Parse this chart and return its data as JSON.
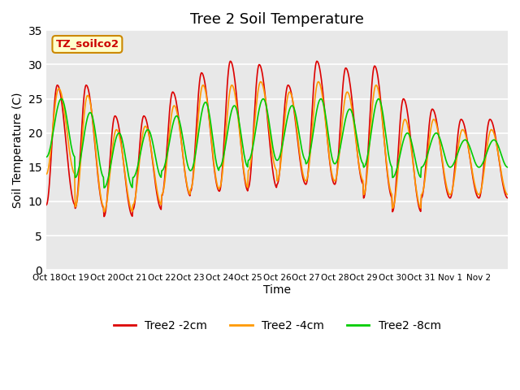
{
  "title": "Tree 2 Soil Temperature",
  "ylabel": "Soil Temperature (C)",
  "xlabel": "Time",
  "ylim": [
    0,
    35
  ],
  "yticks": [
    0,
    5,
    10,
    15,
    20,
    25,
    30,
    35
  ],
  "xtick_labels": [
    "Oct 18",
    "Oct 19",
    "Oct 20",
    "Oct 21",
    "Oct 22",
    "Oct 23",
    "Oct 24",
    "Oct 25",
    "Oct 26",
    "Oct 27",
    "Oct 28",
    "Oct 29",
    "Oct 30",
    "Oct 31",
    "Nov 1",
    "Nov 2"
  ],
  "line_colors": [
    "#dd0000",
    "#ff9900",
    "#00cc00"
  ],
  "line_labels": [
    "Tree2 -2cm",
    "Tree2 -4cm",
    "Tree2 -8cm"
  ],
  "label_box_text": "TZ_soilco2",
  "label_box_bg": "#ffffcc",
  "label_box_edge": "#cc8800",
  "title_fontsize": 13,
  "axis_fontsize": 10,
  "legend_fontsize": 10,
  "daily_min_2cm": [
    9.5,
    9.0,
    7.8,
    8.8,
    10.8,
    11.5,
    11.5,
    12.0,
    12.5,
    12.5,
    12.5,
    10.5,
    8.5,
    10.5,
    10.5,
    10.5
  ],
  "daily_max_2cm": [
    27.0,
    27.0,
    22.5,
    22.5,
    26.0,
    28.8,
    30.5,
    30.0,
    27.0,
    30.5,
    29.5,
    29.8,
    25.0,
    23.5,
    22.0,
    22.0
  ],
  "daily_min_4cm": [
    14.0,
    9.2,
    8.5,
    9.5,
    11.0,
    11.8,
    12.0,
    14.5,
    13.0,
    13.0,
    13.0,
    11.0,
    9.0,
    11.0,
    11.0,
    11.0
  ],
  "daily_max_4cm": [
    26.5,
    25.5,
    20.5,
    21.0,
    24.0,
    27.0,
    27.0,
    27.5,
    26.0,
    27.5,
    26.0,
    27.0,
    22.0,
    22.0,
    20.5,
    20.5
  ],
  "daily_min_8cm": [
    16.5,
    13.5,
    12.0,
    13.5,
    14.5,
    14.5,
    15.0,
    16.0,
    16.0,
    15.5,
    15.5,
    15.0,
    13.5,
    15.0,
    15.0,
    15.0
  ],
  "daily_max_8cm": [
    25.0,
    23.0,
    20.0,
    20.5,
    22.5,
    24.5,
    24.0,
    25.0,
    24.0,
    25.0,
    23.5,
    25.0,
    20.0,
    20.0,
    19.0,
    19.0
  ]
}
